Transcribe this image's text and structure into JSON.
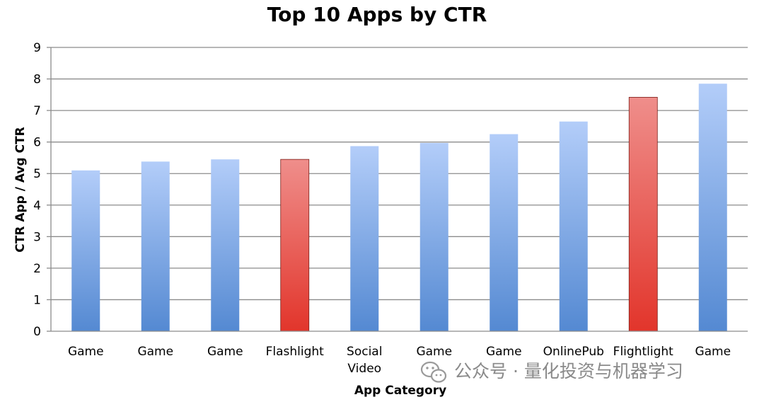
{
  "chart_data": {
    "type": "bar",
    "title": "Top 10 Apps by CTR",
    "xlabel": "App Category",
    "ylabel": "CTR App / Avg CTR",
    "ylim": [
      0,
      9
    ],
    "yticks": [
      "0",
      "1",
      "2",
      "3",
      "4",
      "5",
      "6",
      "7",
      "8",
      "9"
    ],
    "grid": true,
    "categories": [
      [
        "Game"
      ],
      [
        "Game"
      ],
      [
        "Game"
      ],
      [
        "Flashlight"
      ],
      [
        "Social",
        "Video"
      ],
      [
        "Game"
      ],
      [
        "Game"
      ],
      [
        "OnlinePub"
      ],
      [
        "Flightlight"
      ],
      [
        "Game"
      ]
    ],
    "values": [
      5.1,
      5.38,
      5.45,
      5.45,
      5.87,
      5.97,
      6.25,
      6.65,
      7.42,
      7.85
    ],
    "highlighted": [
      false,
      false,
      false,
      true,
      false,
      false,
      false,
      false,
      true,
      false
    ],
    "colors": {
      "bar_top": "#b3cdf9",
      "bar_bottom": "#5489d2",
      "highlight_top": "#ef8e8b",
      "highlight_bottom": "#e2352b"
    }
  },
  "watermark": {
    "text": "公众号 · 量化投资与机器学习",
    "icon": "wechat-icon"
  }
}
